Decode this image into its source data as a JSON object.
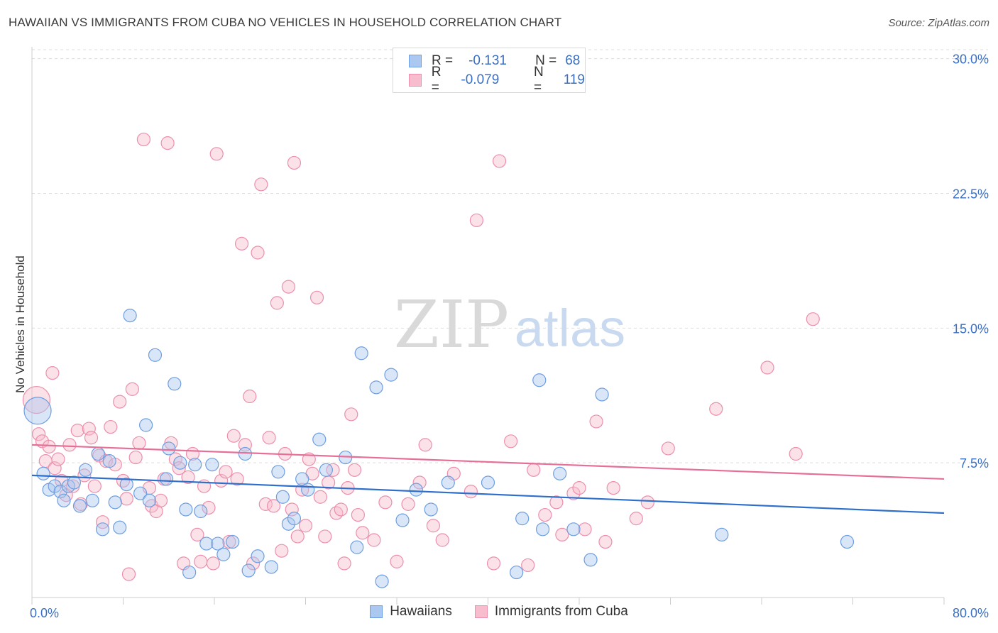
{
  "header": {
    "title": "HAWAIIAN VS IMMIGRANTS FROM CUBA NO VEHICLES IN HOUSEHOLD CORRELATION CHART",
    "source": "Source: ZipAtlas.com"
  },
  "watermark": {
    "zip": "ZIP",
    "atlas": "atlas"
  },
  "legend_top": {
    "rows": [
      {
        "r_label": "R =",
        "r_value": "-0.131",
        "n_label": "N =",
        "n_value": "68"
      },
      {
        "r_label": "R =",
        "r_value": "-0.079",
        "n_label": "N =",
        "n_value": "119"
      }
    ]
  },
  "colors": {
    "hawaiians_fill": "#aac8f0",
    "hawaiians_stroke": "#6d9ee0",
    "hawaiians_line": "#2f6fcc",
    "cuba_fill": "#f7bccd",
    "cuba_stroke": "#ec8fac",
    "cuba_line": "#e66f98",
    "axis_label": "#3a6fc4",
    "grid": "#dddddd"
  },
  "chart_data": {
    "type": "scatter",
    "title": "HAWAIIAN VS IMMIGRANTS FROM CUBA NO VEHICLES IN HOUSEHOLD CORRELATION CHART",
    "xlabel": "",
    "ylabel": "No Vehicles in Household",
    "xlim": [
      0,
      80
    ],
    "ylim": [
      0,
      30.5
    ],
    "x_tick_labels": [
      "0.0%",
      "80.0%"
    ],
    "y_ticks": [
      7.5,
      15.0,
      22.5,
      30.0
    ],
    "y_tick_labels": [
      "7.5%",
      "15.0%",
      "22.5%",
      "30.0%"
    ],
    "grid": true,
    "legend_position": "top-center",
    "series": [
      {
        "name": "Hawaiians",
        "r": -0.131,
        "n": 68,
        "trend": {
          "x": [
            0,
            80
          ],
          "y": [
            6.8,
            4.7
          ]
        },
        "points": [
          [
            0.5,
            10.4
          ],
          [
            1.0,
            6.9
          ],
          [
            1.5,
            6.0
          ],
          [
            2.0,
            6.2
          ],
          [
            2.5,
            5.9
          ],
          [
            2.8,
            5.4
          ],
          [
            3.2,
            6.2
          ],
          [
            3.7,
            6.4
          ],
          [
            4.2,
            5.1
          ],
          [
            4.7,
            7.1
          ],
          [
            5.3,
            5.4
          ],
          [
            5.8,
            8.0
          ],
          [
            6.2,
            3.8
          ],
          [
            6.8,
            7.6
          ],
          [
            7.3,
            5.3
          ],
          [
            7.7,
            3.9
          ],
          [
            8.3,
            6.3
          ],
          [
            8.6,
            15.7
          ],
          [
            9.5,
            5.8
          ],
          [
            10.0,
            9.6
          ],
          [
            10.3,
            5.4
          ],
          [
            10.8,
            13.5
          ],
          [
            11.8,
            6.6
          ],
          [
            12.0,
            8.3
          ],
          [
            12.5,
            11.9
          ],
          [
            13.0,
            7.5
          ],
          [
            13.5,
            4.9
          ],
          [
            13.8,
            1.4
          ],
          [
            14.3,
            7.4
          ],
          [
            14.8,
            4.8
          ],
          [
            15.3,
            3.0
          ],
          [
            15.8,
            7.4
          ],
          [
            16.3,
            3.0
          ],
          [
            16.8,
            2.4
          ],
          [
            17.6,
            3.1
          ],
          [
            18.7,
            8.0
          ],
          [
            19.0,
            1.5
          ],
          [
            19.8,
            2.3
          ],
          [
            21.0,
            1.7
          ],
          [
            21.6,
            7.0
          ],
          [
            22.0,
            5.6
          ],
          [
            22.5,
            4.1
          ],
          [
            23.0,
            4.4
          ],
          [
            23.7,
            6.6
          ],
          [
            24.2,
            6.0
          ],
          [
            25.2,
            8.8
          ],
          [
            25.8,
            7.1
          ],
          [
            27.5,
            7.8
          ],
          [
            28.5,
            2.8
          ],
          [
            28.9,
            13.6
          ],
          [
            30.2,
            11.7
          ],
          [
            30.7,
            0.9
          ],
          [
            31.5,
            12.4
          ],
          [
            32.5,
            4.3
          ],
          [
            33.7,
            6.0
          ],
          [
            35.0,
            4.9
          ],
          [
            36.5,
            6.4
          ],
          [
            40.0,
            6.4
          ],
          [
            42.5,
            1.4
          ],
          [
            43.0,
            4.4
          ],
          [
            44.5,
            12.1
          ],
          [
            44.8,
            3.8
          ],
          [
            46.3,
            6.9
          ],
          [
            47.5,
            3.8
          ],
          [
            49.0,
            2.1
          ],
          [
            50.0,
            11.3
          ],
          [
            60.5,
            3.5
          ],
          [
            71.5,
            3.1
          ]
        ]
      },
      {
        "name": "Immigrants from Cuba",
        "r": -0.079,
        "n": 119,
        "trend": {
          "x": [
            0,
            80
          ],
          "y": [
            8.5,
            6.6
          ]
        },
        "points": [
          [
            0.4,
            11.0
          ],
          [
            0.6,
            9.1
          ],
          [
            0.9,
            8.7
          ],
          [
            1.2,
            7.6
          ],
          [
            1.5,
            8.4
          ],
          [
            1.8,
            12.5
          ],
          [
            2.0,
            7.2
          ],
          [
            2.3,
            7.7
          ],
          [
            2.6,
            6.5
          ],
          [
            3.0,
            5.7
          ],
          [
            3.3,
            8.5
          ],
          [
            3.6,
            6.2
          ],
          [
            4.0,
            9.3
          ],
          [
            4.3,
            5.2
          ],
          [
            4.6,
            6.8
          ],
          [
            5.0,
            9.4
          ],
          [
            5.2,
            8.9
          ],
          [
            5.5,
            6.2
          ],
          [
            5.9,
            7.9
          ],
          [
            6.2,
            4.2
          ],
          [
            6.5,
            7.6
          ],
          [
            6.9,
            9.5
          ],
          [
            7.3,
            7.4
          ],
          [
            7.7,
            10.9
          ],
          [
            8.0,
            6.5
          ],
          [
            8.3,
            5.5
          ],
          [
            8.5,
            1.3
          ],
          [
            8.8,
            11.6
          ],
          [
            9.1,
            7.8
          ],
          [
            9.4,
            8.6
          ],
          [
            9.8,
            25.5
          ],
          [
            10.3,
            6.1
          ],
          [
            10.5,
            5.1
          ],
          [
            10.9,
            4.8
          ],
          [
            11.3,
            5.4
          ],
          [
            11.6,
            6.6
          ],
          [
            11.9,
            25.3
          ],
          [
            12.2,
            8.6
          ],
          [
            12.6,
            7.7
          ],
          [
            12.9,
            7.2
          ],
          [
            13.3,
            1.9
          ],
          [
            13.7,
            6.7
          ],
          [
            14.1,
            8.0
          ],
          [
            14.5,
            3.5
          ],
          [
            14.8,
            2.0
          ],
          [
            15.1,
            6.2
          ],
          [
            15.5,
            5.0
          ],
          [
            15.9,
            1.9
          ],
          [
            16.2,
            24.7
          ],
          [
            16.6,
            6.5
          ],
          [
            17.0,
            7.0
          ],
          [
            17.3,
            3.1
          ],
          [
            17.7,
            9.0
          ],
          [
            18.0,
            6.6
          ],
          [
            18.4,
            19.7
          ],
          [
            18.7,
            8.5
          ],
          [
            19.1,
            11.2
          ],
          [
            19.4,
            1.9
          ],
          [
            19.8,
            19.2
          ],
          [
            20.1,
            23.0
          ],
          [
            20.5,
            5.2
          ],
          [
            20.8,
            8.9
          ],
          [
            21.2,
            5.1
          ],
          [
            21.5,
            16.4
          ],
          [
            21.9,
            2.6
          ],
          [
            22.2,
            8.0
          ],
          [
            22.5,
            17.3
          ],
          [
            22.8,
            4.9
          ],
          [
            23.0,
            24.2
          ],
          [
            23.3,
            3.4
          ],
          [
            23.7,
            6.0
          ],
          [
            24.0,
            4.0
          ],
          [
            24.3,
            7.7
          ],
          [
            24.6,
            6.9
          ],
          [
            25.0,
            16.7
          ],
          [
            25.3,
            5.6
          ],
          [
            25.7,
            3.4
          ],
          [
            26.0,
            6.4
          ],
          [
            26.4,
            7.1
          ],
          [
            26.7,
            4.7
          ],
          [
            27.1,
            4.9
          ],
          [
            27.4,
            1.9
          ],
          [
            27.7,
            6.1
          ],
          [
            28.0,
            10.2
          ],
          [
            28.3,
            7.1
          ],
          [
            28.6,
            4.6
          ],
          [
            29.0,
            3.6
          ],
          [
            30.0,
            3.2
          ],
          [
            31.0,
            5.3
          ],
          [
            32.0,
            2.0
          ],
          [
            33.0,
            5.2
          ],
          [
            34.0,
            6.4
          ],
          [
            34.5,
            8.5
          ],
          [
            35.2,
            4.0
          ],
          [
            36.0,
            3.2
          ],
          [
            37.0,
            6.9
          ],
          [
            38.5,
            5.9
          ],
          [
            39.0,
            21.0
          ],
          [
            40.5,
            1.9
          ],
          [
            41.0,
            24.3
          ],
          [
            42.0,
            8.7
          ],
          [
            43.5,
            1.8
          ],
          [
            44.0,
            7.1
          ],
          [
            45.0,
            4.6
          ],
          [
            46.0,
            5.3
          ],
          [
            46.5,
            3.5
          ],
          [
            47.5,
            5.8
          ],
          [
            48.0,
            6.1
          ],
          [
            48.5,
            3.8
          ],
          [
            49.5,
            9.8
          ],
          [
            50.3,
            3.1
          ],
          [
            51.0,
            6.1
          ],
          [
            53.0,
            4.4
          ],
          [
            54.0,
            5.3
          ],
          [
            55.8,
            8.3
          ],
          [
            60.0,
            10.5
          ],
          [
            64.5,
            12.8
          ],
          [
            67.0,
            8.0
          ],
          [
            68.5,
            15.5
          ]
        ]
      }
    ]
  },
  "bottom_legend": {
    "items": [
      {
        "label": "Hawaiians"
      },
      {
        "label": "Immigrants from Cuba"
      }
    ]
  }
}
